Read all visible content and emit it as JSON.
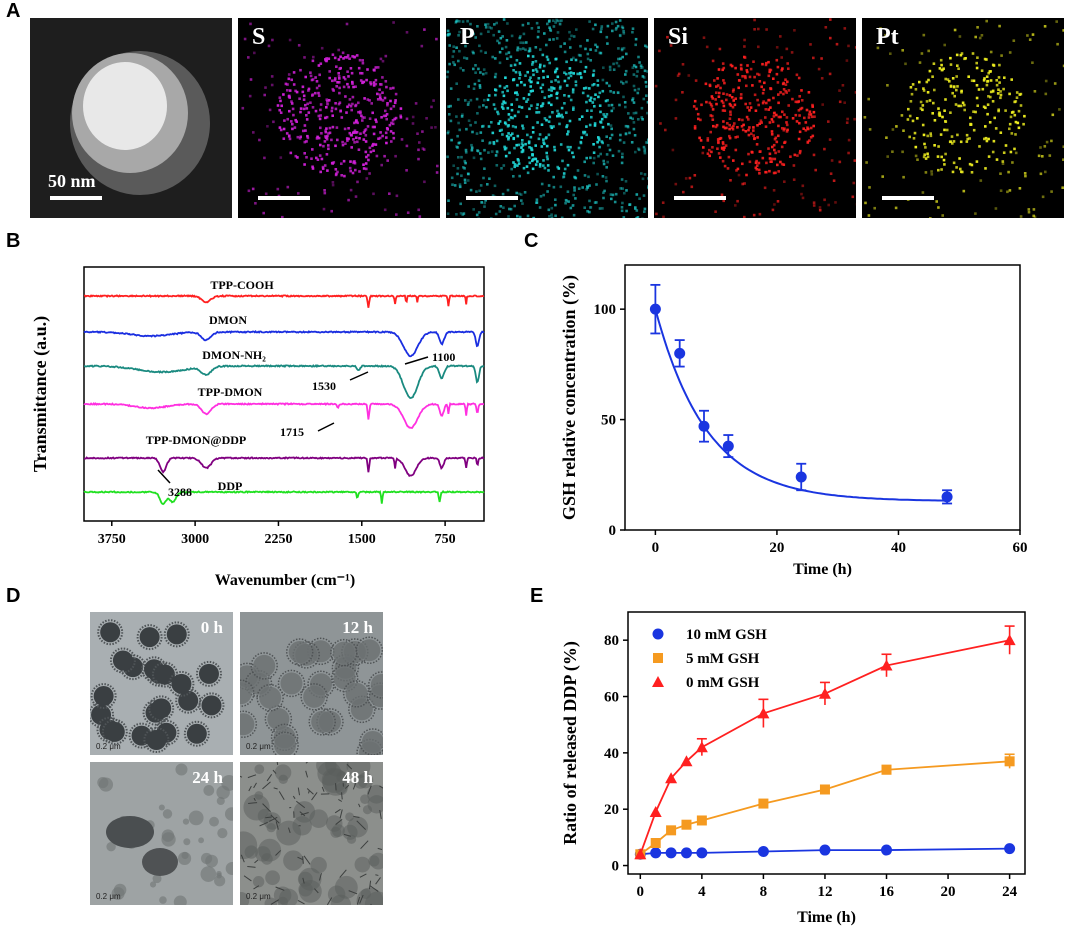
{
  "panels": {
    "a": "A",
    "b": "B",
    "c": "C",
    "d": "D",
    "e": "E"
  },
  "eds_maps": [
    {
      "label": "",
      "color": "#d8d8d8",
      "kind": "haadf"
    },
    {
      "label": "S",
      "color": "#d020d8"
    },
    {
      "label": "P",
      "color": "#20d8d8"
    },
    {
      "label": "Si",
      "color": "#ff2020"
    },
    {
      "label": "Pt",
      "color": "#f0f020"
    }
  ],
  "scale_bar_label": "50 nm",
  "tem_images": [
    {
      "label": "0 h",
      "scale": "0.2 μm"
    },
    {
      "label": "12 h",
      "scale": "0.2 μm"
    },
    {
      "label": "24 h",
      "scale": "0.2 μm"
    },
    {
      "label": "48 h",
      "scale": "0.2 μm"
    }
  ],
  "chart_data": [
    {
      "id": "B",
      "type": "line",
      "xlabel": "Wavenumber (cm⁻¹)",
      "ylabel": "Transmittance (a.u.)",
      "x_reversed": true,
      "xlim": [
        4000,
        400
      ],
      "xticks": [
        3750,
        3000,
        2250,
        1500,
        750
      ],
      "series": [
        {
          "name": "TPP-COOH",
          "color": "#ff2020"
        },
        {
          "name": "DMON",
          "color": "#1a2ee0"
        },
        {
          "name": "DMON-NH₂",
          "color": "#1a8a80"
        },
        {
          "name": "TPP-DMON",
          "color": "#ff30e0"
        },
        {
          "name": "TPP-DMON@DDP",
          "color": "#800080"
        },
        {
          "name": "DDP",
          "color": "#20e020"
        }
      ],
      "annotations": [
        "1100",
        "1530",
        "1715",
        "3288"
      ]
    },
    {
      "id": "C",
      "type": "scatter",
      "xlabel": "Time (h)",
      "ylabel": "GSH relative concentration (%)",
      "xlim": [
        -5,
        60
      ],
      "ylim": [
        0,
        120
      ],
      "xticks": [
        0,
        20,
        40,
        60
      ],
      "yticks": [
        0,
        50,
        100
      ],
      "x": [
        0,
        4,
        8,
        12,
        24,
        48
      ],
      "values": [
        100,
        80,
        47,
        38,
        24,
        15
      ],
      "errors": [
        11,
        6,
        7,
        5,
        6,
        3
      ],
      "fit": "exponential decay",
      "color": "#1a35e0"
    },
    {
      "id": "E",
      "type": "line",
      "xlabel": "Time (h)",
      "ylabel": "Ratio of released DDP (%)",
      "xlim": [
        -0.8,
        25
      ],
      "ylim": [
        -3,
        90
      ],
      "xtick_labels": [
        "0",
        "4",
        "8",
        "12",
        "16",
        "20",
        "24"
      ],
      "yticks": [
        0,
        20,
        40,
        60,
        80
      ],
      "legend_position": "top-left",
      "series": [
        {
          "name": "10 mM GSH",
          "color": "#1a35e0",
          "marker": "circle",
          "x": [
            0,
            1,
            2,
            3,
            4,
            8,
            12,
            16,
            24
          ],
          "values": [
            4,
            4.5,
            4.5,
            4.5,
            4.5,
            5,
            5.5,
            5.5,
            6
          ],
          "errors": [
            0,
            0,
            0,
            0,
            0,
            0,
            0,
            0,
            0
          ]
        },
        {
          "name": "5 mM GSH",
          "color": "#f59a20",
          "marker": "square",
          "x": [
            0,
            1,
            2,
            3,
            4,
            8,
            12,
            16,
            24
          ],
          "values": [
            4,
            8,
            12.5,
            14.5,
            16,
            22,
            27,
            34,
            37
          ],
          "errors": [
            0,
            0,
            0,
            0,
            0,
            0,
            0,
            1.5,
            2.5
          ]
        },
        {
          "name": "0 mM GSH",
          "color": "#ff2020",
          "marker": "triangle",
          "x": [
            0,
            1,
            2,
            3,
            4,
            8,
            12,
            16,
            24
          ],
          "values": [
            4,
            19,
            31,
            37,
            42,
            54,
            61,
            71,
            80
          ],
          "errors": [
            0,
            0,
            0,
            0,
            3,
            5,
            4,
            4,
            5
          ]
        }
      ]
    }
  ]
}
